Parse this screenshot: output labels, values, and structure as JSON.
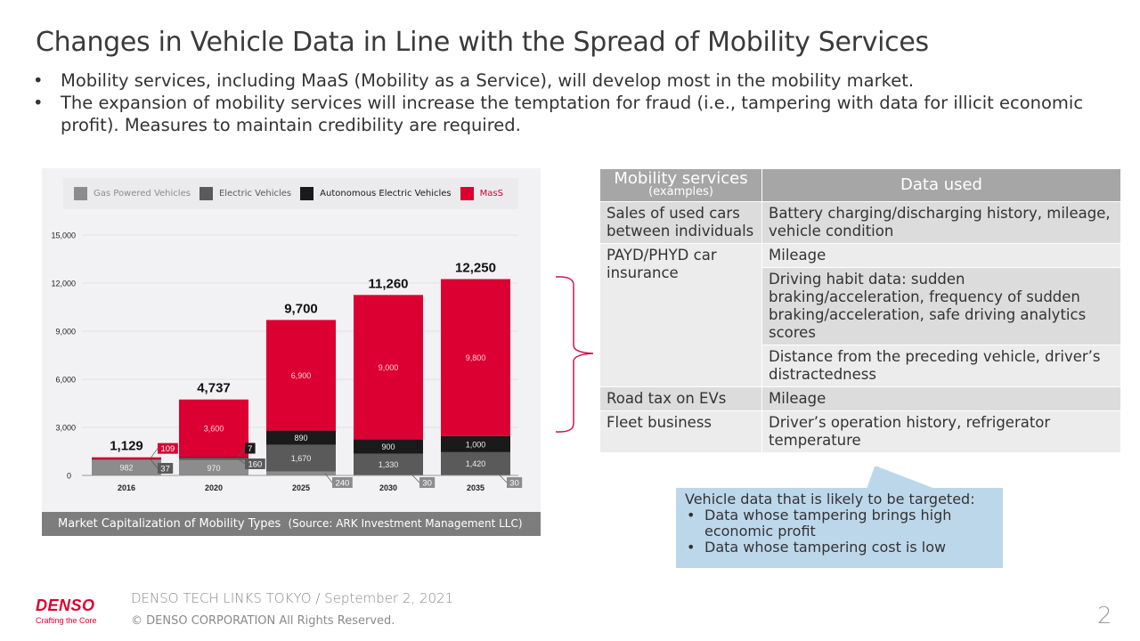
{
  "title": "Changes in Vehicle Data in Line with the Spread of Mobility Services",
  "bullets": [
    "Mobility services, including MaaS (Mobility as a Service), will develop most in the mobility market.",
    "The expansion of mobility services will increase the temptation for fraud (i.e., tampering with data for illicit economic profit). Measures to maintain credibility are required."
  ],
  "chart_caption": {
    "title": "Market Capitalization of Mobility Types",
    "source": "(Source: ARK Investment Management LLC)"
  },
  "chart_data": {
    "type": "bar",
    "stacked": true,
    "title": "Market Capitalization of Mobility Types",
    "xlabel": "",
    "ylabel": "",
    "categories": [
      "2016",
      "2020",
      "2025",
      "2030",
      "2035"
    ],
    "ylim": [
      0,
      15000
    ],
    "yticks": [
      0,
      3000,
      6000,
      9000,
      12000,
      15000
    ],
    "ytick_labels": [
      "0",
      "3,000",
      "6,000",
      "9,000",
      "12,000",
      "15,000"
    ],
    "grid": true,
    "legend_position": "top",
    "series": [
      {
        "name": "Gas Powered Vehicles",
        "color": "#8c8c8c",
        "values": [
          982,
          970,
          240,
          30,
          30
        ],
        "labels": [
          "982",
          "970",
          "240",
          "30",
          "30"
        ]
      },
      {
        "name": "Electric Vehicles",
        "color": "#5a5a5a",
        "values": [
          37,
          160,
          1670,
          1330,
          1420
        ],
        "labels": [
          "37",
          "160",
          "1,670",
          "1,330",
          "1,420"
        ]
      },
      {
        "name": "Autonomous Electric Vehicles",
        "color": "#1a1a1a",
        "values": [
          1,
          7,
          890,
          900,
          1000
        ],
        "labels": [
          "",
          "7",
          "890",
          "900",
          "1,000"
        ]
      },
      {
        "name": "MasS",
        "color": "#dc0032",
        "values": [
          109,
          3600,
          6900,
          9000,
          9800
        ],
        "labels": [
          "109",
          "3,600",
          "6,900",
          "9,000",
          "9,800"
        ]
      }
    ],
    "totals": [
      1129,
      4737,
      9700,
      11260,
      12250
    ],
    "total_labels": [
      "1,129",
      "4,737",
      "9,700",
      "11,260",
      "12,250"
    ]
  },
  "table": {
    "headers": {
      "service": "Mobility services",
      "service_sub": "(examples)",
      "data": "Data used"
    },
    "rows": [
      {
        "service": "Sales of used cars between individuals",
        "data": [
          "Battery charging/discharging history, mileage, vehicle condition"
        ]
      },
      {
        "service": "PAYD/PHYD car insurance",
        "data": [
          "Mileage",
          "Driving habit data: sudden braking/acceleration, frequency of sudden braking/acceleration, safe driving analytics scores",
          "Distance from the preceding vehicle, driver’s distractedness"
        ]
      },
      {
        "service": "Road tax on EVs",
        "data": [
          "Mileage"
        ]
      },
      {
        "service": "Fleet business",
        "data": [
          "Driver’s operation history, refrigerator temperature"
        ]
      }
    ]
  },
  "callout": {
    "heading": "Vehicle data that is likely to be targeted:",
    "items": [
      "Data whose tampering brings high economic profit",
      "Data whose tampering cost is low"
    ]
  },
  "footer": {
    "logo": "DENSO",
    "tagline": "Crafting the Core",
    "event": "DENSO TECH LINKS TOKYO / September 2, 2021",
    "copyright": "© DENSO CORPORATION All Rights Reserved.",
    "page_number": "2"
  },
  "colors": {
    "brand_red": "#dc0032",
    "bracket": "#c8174a",
    "callout_bg": "#bdd7ea"
  }
}
